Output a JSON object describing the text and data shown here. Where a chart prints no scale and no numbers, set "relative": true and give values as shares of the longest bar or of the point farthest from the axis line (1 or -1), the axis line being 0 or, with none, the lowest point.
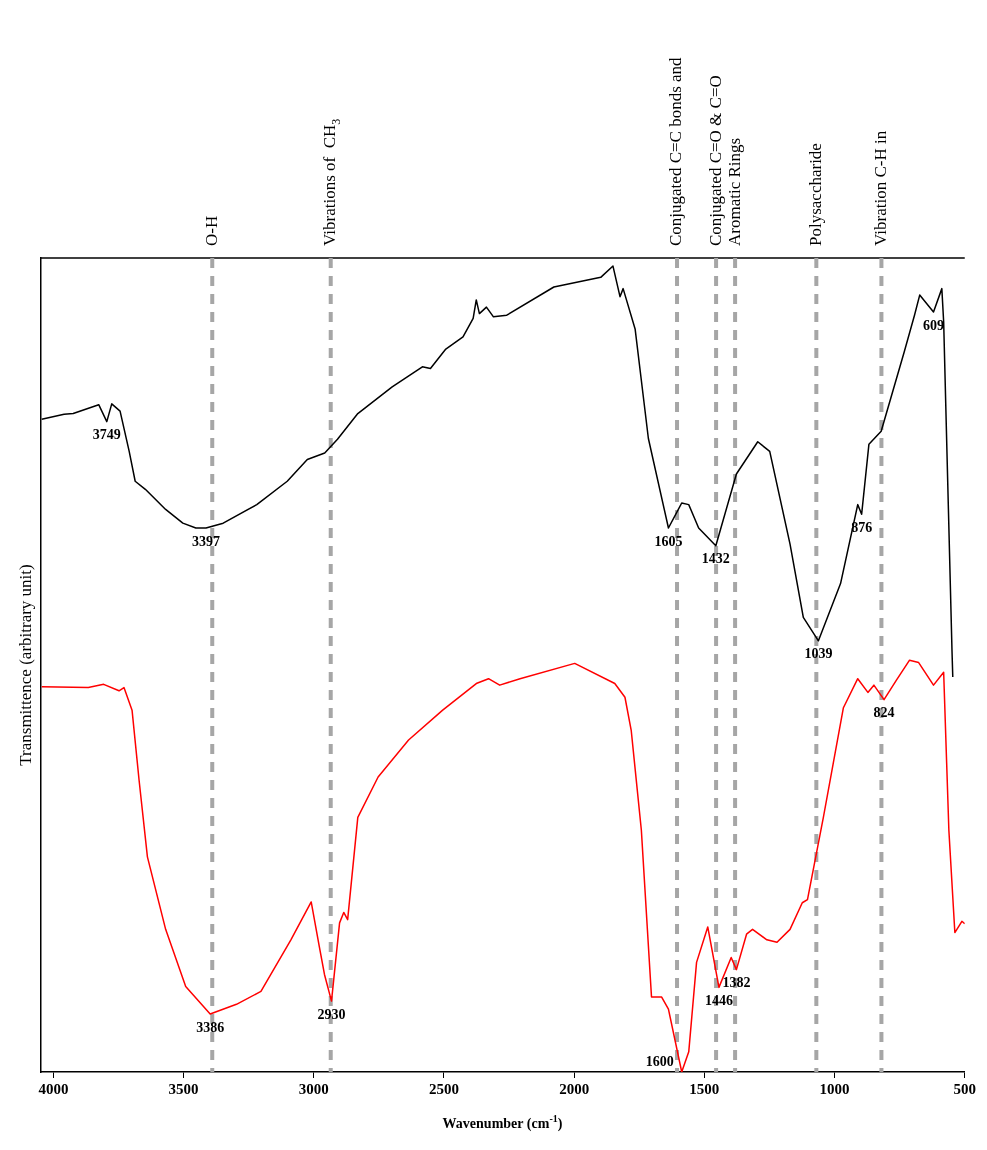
{
  "chart_data": {
    "type": "line",
    "xlabel": "Wavenumber (cm$^{-1}$)",
    "ylabel": "Transmittence (arbitrary unit)",
    "xlim": [
      4050,
      500
    ],
    "xticks": [
      4000,
      3500,
      3000,
      2500,
      2000,
      1500,
      1000,
      500
    ],
    "relative": true,
    "grid": false,
    "legend": false,
    "marker": "none",
    "series": [
      {
        "color": "#000000",
        "x": [
          4045,
          3959,
          3924,
          3826,
          3795,
          3776,
          3744,
          3709,
          3686,
          3647,
          3569,
          3503,
          3453,
          3414,
          3348,
          3219,
          3102,
          3025,
          2958,
          2909,
          2831,
          2699,
          2583,
          2552,
          2493,
          2427,
          2388,
          2376,
          2364,
          2337,
          2310,
          2259,
          2078,
          1898,
          1851,
          1824,
          1812,
          1766,
          1715,
          1638,
          1587,
          1560,
          1522,
          1456,
          1377,
          1295,
          1249,
          1171,
          1120,
          1062,
          977,
          911,
          896,
          868,
          821,
          732,
          693,
          673,
          620,
          588,
          581,
          549,
          546
        ],
        "values": [
          0.81,
          0.816,
          0.817,
          0.828,
          0.807,
          0.829,
          0.82,
          0.77,
          0.733,
          0.723,
          0.698,
          0.681,
          0.675,
          0.675,
          0.681,
          0.704,
          0.733,
          0.76,
          0.768,
          0.785,
          0.817,
          0.85,
          0.875,
          0.873,
          0.897,
          0.912,
          0.935,
          0.958,
          0.941,
          0.949,
          0.937,
          0.939,
          0.974,
          0.986,
          1.0,
          0.962,
          0.972,
          0.922,
          0.786,
          0.675,
          0.706,
          0.704,
          0.675,
          0.653,
          0.742,
          0.782,
          0.77,
          0.655,
          0.564,
          0.535,
          0.606,
          0.704,
          0.692,
          0.779,
          0.795,
          0.894,
          0.939,
          0.964,
          0.943,
          0.972,
          0.931,
          0.523,
          0.49
        ]
      },
      {
        "color": "#ff0000",
        "x": [
          4045,
          3866,
          3807,
          3748,
          3729,
          3698,
          3671,
          3639,
          3569,
          3492,
          3398,
          3297,
          3203,
          3088,
          3010,
          2979,
          2959,
          2932,
          2901,
          2885,
          2870,
          2831,
          2753,
          2636,
          2505,
          2376,
          2329,
          2286,
          2208,
          1998,
          1844,
          1805,
          1781,
          1742,
          1703,
          1664,
          1638,
          1587,
          1560,
          1530,
          1487,
          1444,
          1397,
          1377,
          1338,
          1315,
          1260,
          1221,
          1171,
          1124,
          1104,
          1043,
          966,
          911,
          872,
          849,
          810,
          763,
          712,
          677,
          620,
          581,
          561,
          538,
          511,
          500
        ],
        "values": [
          0.478,
          0.477,
          0.481,
          0.473,
          0.477,
          0.449,
          0.362,
          0.267,
          0.177,
          0.106,
          0.072,
          0.084,
          0.1,
          0.164,
          0.211,
          0.156,
          0.121,
          0.088,
          0.185,
          0.198,
          0.189,
          0.316,
          0.366,
          0.412,
          0.449,
          0.482,
          0.488,
          0.48,
          0.488,
          0.507,
          0.482,
          0.465,
          0.424,
          0.3,
          0.093,
          0.093,
          0.078,
          0.0,
          0.025,
          0.136,
          0.18,
          0.105,
          0.142,
          0.127,
          0.171,
          0.177,
          0.164,
          0.161,
          0.177,
          0.21,
          0.214,
          0.316,
          0.452,
          0.488,
          0.471,
          0.48,
          0.462,
          0.486,
          0.511,
          0.508,
          0.48,
          0.496,
          0.3,
          0.173,
          0.187,
          0.184
        ]
      }
    ],
    "ref_lines": [
      {
        "axis": "x",
        "value": 3390,
        "label": "O-H",
        "color": "#a6a6a6",
        "line_style": "dashed"
      },
      {
        "axis": "x",
        "value": 2935,
        "label": "Vibrations of  CH$_{3}$",
        "color": "#a6a6a6",
        "line_style": "dashed"
      },
      {
        "axis": "x",
        "value": 1605,
        "label": "Conjugated C=C bonds and",
        "color": "#a6a6a6",
        "line_style": "dashed"
      },
      {
        "axis": "x",
        "value": 1455,
        "label": "Conjugated C=O & C=O",
        "color": "#a6a6a6",
        "line_style": "dashed"
      },
      {
        "axis": "x",
        "value": 1382,
        "label": "Aromatic Rings",
        "color": "#a6a6a6",
        "line_style": "dashed"
      },
      {
        "axis": "x",
        "value": 1070,
        "label": "Polysaccharide",
        "color": "#a6a6a6",
        "line_style": "dashed"
      },
      {
        "axis": "x",
        "value": 820,
        "label": "Vibration C-H in",
        "color": "#a6a6a6",
        "line_style": "dashed"
      }
    ],
    "annotations": [
      {
        "text": "3749",
        "x": 3795,
        "y": 0.807
      },
      {
        "text": "3397",
        "x": 3414,
        "y": 0.675
      },
      {
        "text": "1605",
        "x": 1638,
        "y": 0.675
      },
      {
        "text": "1432",
        "x": 1456,
        "y": 0.653
      },
      {
        "text": "876",
        "x": 896,
        "y": 0.692
      },
      {
        "text": "1039",
        "x": 1062,
        "y": 0.535
      },
      {
        "text": "609",
        "x": 620,
        "y": 0.943
      },
      {
        "text": "3386",
        "x": 3398,
        "y": 0.072
      },
      {
        "text": "2930",
        "x": 2932,
        "y": 0.088
      },
      {
        "text": "1600",
        "x": 1587,
        "y": 0.0
      },
      {
        "text": "1446",
        "x": 1444,
        "y": 0.105
      },
      {
        "text": "1382",
        "x": 1377,
        "y": 0.127
      },
      {
        "text": "824",
        "x": 810,
        "y": 0.462
      }
    ]
  }
}
